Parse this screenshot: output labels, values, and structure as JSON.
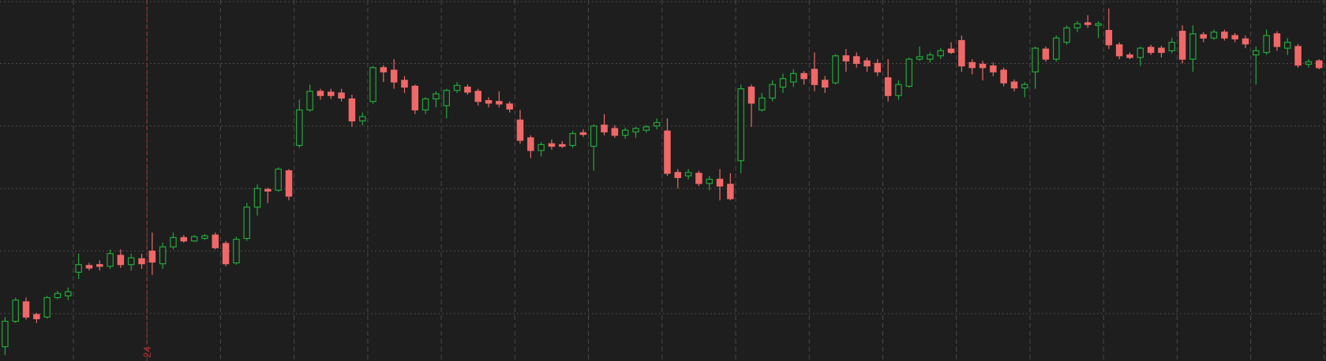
{
  "chart_data": {
    "type": "candlestick",
    "up_color": "#22a83a",
    "down_color": "#f06868",
    "grid": true,
    "grid_color": "#4a4a4a",
    "xlim": [
      -0.48,
      125.66
    ],
    "ylim": [
      3,
      430
    ],
    "xticks": [
      6.5,
      13.5,
      20.5,
      27.5,
      34.5,
      41.5,
      48.5,
      55.5,
      62.5,
      69.5,
      76.5,
      83.5,
      90.5,
      97.5,
      104.5,
      111.5,
      118.5,
      125.5
    ],
    "yticks": [
      59,
      133,
      207,
      281,
      355,
      428
    ],
    "annotations": [
      {
        "x": 13.5,
        "label": "24",
        "color": "#a83232"
      }
    ],
    "open": [
      20,
      50,
      73,
      58,
      55,
      78,
      80,
      108,
      116,
      117,
      115,
      128,
      117,
      124,
      133,
      118,
      138,
      149,
      145,
      148,
      152,
      142,
      119,
      148,
      185,
      206,
      205,
      228,
      258,
      300,
      322,
      321,
      320,
      313,
      287,
      310,
      350,
      347,
      335,
      328,
      300,
      313,
      305,
      323,
      327,
      322,
      311,
      310,
      307,
      288,
      267,
      252,
      260,
      259,
      258,
      273,
      257,
      282,
      278,
      270,
      274,
      276,
      281,
      275,
      226,
      222,
      225,
      213,
      218,
      212,
      240,
      327,
      300,
      314,
      327,
      333,
      343,
      348,
      335,
      332,
      364,
      363,
      358,
      355,
      338,
      317,
      328,
      360,
      360,
      364,
      372,
      382,
      356,
      354,
      352,
      347,
      333,
      326,
      345,
      372,
      360,
      380,
      397,
      403,
      400,
      394,
      377,
      365,
      362,
      374,
      373,
      370,
      393,
      360,
      389,
      385,
      392,
      388,
      384,
      365,
      368,
      390,
      373,
      375,
      354,
      358
    ],
    "high": [
      55,
      78,
      78,
      60,
      80,
      86,
      90,
      130,
      119,
      122,
      135,
      135,
      130,
      130,
      155,
      143,
      155,
      152,
      152,
      153,
      155,
      145,
      150,
      190,
      212,
      208,
      232,
      230,
      312,
      330,
      325,
      325,
      325,
      318,
      297,
      352,
      353,
      360,
      340,
      330,
      315,
      322,
      325,
      333,
      330,
      325,
      315,
      322,
      310,
      300,
      270,
      262,
      265,
      263,
      275,
      277,
      283,
      295,
      282,
      279,
      280,
      282,
      290,
      290,
      230,
      230,
      228,
      222,
      230,
      225,
      330,
      330,
      320,
      335,
      343,
      348,
      346,
      368,
      340,
      366,
      372,
      368,
      362,
      360,
      360,
      335,
      362,
      375,
      368,
      373,
      380,
      388,
      360,
      358,
      356,
      350,
      336,
      333,
      375,
      375,
      388,
      400,
      405,
      412,
      405,
      420,
      380,
      368,
      375,
      377,
      376,
      385,
      400,
      400,
      392,
      395,
      395,
      391,
      388,
      375,
      395,
      393,
      385,
      378,
      360,
      360
    ],
    "low": [
      10,
      48,
      52,
      48,
      53,
      76,
      75,
      100,
      110,
      110,
      112,
      113,
      110,
      112,
      105,
      112,
      135,
      143,
      144,
      146,
      135,
      115,
      117,
      145,
      175,
      190,
      203,
      193,
      255,
      298,
      312,
      313,
      310,
      280,
      282,
      307,
      333,
      325,
      320,
      295,
      295,
      303,
      290,
      320,
      318,
      305,
      303,
      303,
      297,
      260,
      243,
      245,
      253,
      255,
      255,
      268,
      228,
      270,
      267,
      266,
      267,
      273,
      277,
      222,
      207,
      218,
      210,
      205,
      193,
      193,
      225,
      280,
      298,
      310,
      320,
      327,
      330,
      322,
      320,
      330,
      345,
      350,
      345,
      340,
      310,
      312,
      326,
      358,
      356,
      360,
      366,
      345,
      342,
      335,
      340,
      328,
      322,
      315,
      325,
      357,
      357,
      377,
      392,
      397,
      385,
      372,
      360,
      360,
      352,
      365,
      362,
      367,
      355,
      345,
      380,
      383,
      382,
      380,
      373,
      330,
      365,
      370,
      365,
      350,
      350,
      348
    ],
    "close": [
      50,
      75,
      55,
      53,
      78,
      83,
      85,
      117,
      113,
      115,
      130,
      117,
      125,
      118,
      120,
      138,
      149,
      145,
      150,
      151,
      137,
      118,
      147,
      185,
      207,
      204,
      230,
      198,
      300,
      322,
      317,
      317,
      314,
      287,
      292,
      350,
      345,
      333,
      327,
      300,
      313,
      319,
      323,
      329,
      321,
      310,
      308,
      307,
      301,
      264,
      252,
      259,
      257,
      257,
      272,
      271,
      281,
      274,
      270,
      276,
      278,
      280,
      285,
      225,
      220,
      226,
      213,
      218,
      210,
      195,
      325,
      308,
      314,
      330,
      337,
      343,
      337,
      330,
      327,
      364,
      358,
      355,
      352,
      345,
      317,
      330,
      360,
      363,
      365,
      370,
      368,
      352,
      350,
      350,
      345,
      332,
      326,
      330,
      373,
      360,
      385,
      397,
      402,
      401,
      402,
      377,
      364,
      362,
      373,
      368,
      368,
      380,
      360,
      390,
      385,
      392,
      385,
      384,
      378,
      370,
      388,
      375,
      380,
      353,
      357,
      350
    ]
  }
}
